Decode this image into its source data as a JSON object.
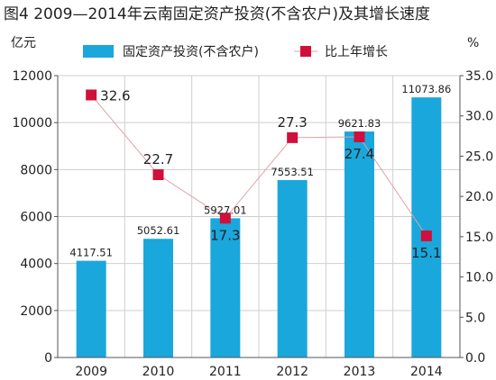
{
  "chart_data": {
    "type": "bar",
    "title": "图4   2009—2014年云南固定资产投资(不含农户)及其增长速度",
    "categories": [
      "2009",
      "2010",
      "2011",
      "2012",
      "2013",
      "2014"
    ],
    "y_left": {
      "unit": "亿元",
      "range": [
        0,
        12000
      ],
      "ticks": [
        "0",
        "2000",
        "4000",
        "6000",
        "8000",
        "10000",
        "12000"
      ]
    },
    "y_right": {
      "unit": "%",
      "range": [
        0,
        35
      ],
      "ticks": [
        "0.0",
        "5.0",
        "10.0",
        "15.0",
        "20.0",
        "25.0",
        "30.0",
        "35.0"
      ]
    },
    "grid": true,
    "legend_position": "top",
    "series": [
      {
        "name": "固定资产投资(不含农户)",
        "type": "bar",
        "axis": "left",
        "color": "#1aa7dc",
        "values": [
          4117.51,
          5052.61,
          5927.01,
          7553.51,
          9621.83,
          11073.86
        ],
        "labels": [
          "4117.51",
          "5052.61",
          "5927.01",
          "7553.51",
          "9621.83",
          "11073.86"
        ]
      },
      {
        "name": "比上年增长",
        "type": "line",
        "axis": "right",
        "color": "#d0103a",
        "line_color": "#e0a0a6",
        "values": [
          32.6,
          22.7,
          17.3,
          27.3,
          27.4,
          15.1
        ],
        "labels": [
          "32.6",
          "22.7",
          "17.3",
          "27.3",
          "27.4",
          "15.1"
        ]
      }
    ]
  }
}
